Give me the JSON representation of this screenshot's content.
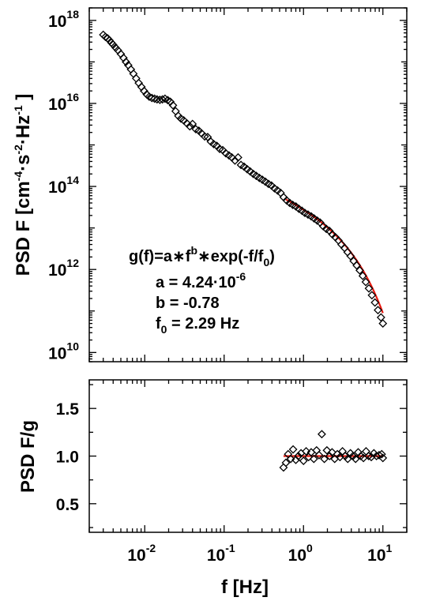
{
  "chart_data": [
    {
      "type": "scatter",
      "panel": "top",
      "ylabel_parts": {
        "main": "PSD F [cm",
        "exp1": "-4",
        "mid1": "·s",
        "exp2": "-2",
        "mid2": "·Hz",
        "exp3": "-1",
        "end": " ]"
      },
      "xscale": "log",
      "yscale": "log",
      "xlim": [
        0.002,
        20
      ],
      "ylim": [
        6000000000.0,
        2e+18
      ],
      "yticks": [
        {
          "value": 10000000000.0,
          "base": "10",
          "exp": "10"
        },
        {
          "value": 1000000000000.0,
          "base": "10",
          "exp": "12"
        },
        {
          "value": 100000000000000.0,
          "base": "10",
          "exp": "14"
        },
        {
          "value": 1e+16,
          "base": "10",
          "exp": "16"
        },
        {
          "value": 1e+18,
          "base": "10",
          "exp": "18"
        }
      ],
      "annotation": {
        "formula_parts": [
          "g(f)=a",
          "∗",
          "f",
          "b",
          "∗",
          "exp(-f/f",
          "0",
          ")"
        ],
        "a_parts": [
          "a = 4.24·10",
          "-6"
        ],
        "b_text": "b = -0.78",
        "f0_parts": [
          "f",
          "0",
          " = 2.29 Hz"
        ]
      },
      "series": [
        {
          "marker": "diamond-open",
          "color": "#000000",
          "points": [
            [
              0.003,
              4.5e+17
            ],
            [
              0.0032,
              4e+17
            ],
            [
              0.0034,
              3.7e+17
            ],
            [
              0.0036,
              3.3e+17
            ],
            [
              0.0038,
              2.9e+17
            ],
            [
              0.004,
              2.6e+17
            ],
            [
              0.0043,
              2.2e+17
            ],
            [
              0.0046,
              1.9e+17
            ],
            [
              0.005,
              1.55e+17
            ],
            [
              0.0054,
              1.25e+17
            ],
            [
              0.0058,
              1e+17
            ],
            [
              0.0062,
              8.3e+16
            ],
            [
              0.0067,
              6.6e+16
            ],
            [
              0.0072,
              5.2e+16
            ],
            [
              0.0078,
              4e+16
            ],
            [
              0.0084,
              3.1e+16
            ],
            [
              0.0091,
              2.5e+16
            ],
            [
              0.0098,
              2e+16
            ],
            [
              0.0106,
              1.65e+16
            ],
            [
              0.0114,
              1.45e+16
            ],
            [
              0.0123,
              1.35e+16
            ],
            [
              0.0133,
              1.3e+16
            ],
            [
              0.0143,
              1.25e+16
            ],
            [
              0.0155,
              1.22e+16
            ],
            [
              0.0167,
              1.25e+16
            ],
            [
              0.018,
              1.3e+16
            ],
            [
              0.0195,
              1.2e+16
            ],
            [
              0.021,
              1.1e+16
            ],
            [
              0.0227,
              9000000000000000.0
            ],
            [
              0.0245,
              6500000000000000.0
            ],
            [
              0.0265,
              5000000000000000.0
            ],
            [
              0.0286,
              4300000000000000.0
            ],
            [
              0.031,
              3900000000000000.0
            ],
            [
              0.034,
              3300000000000000.0
            ],
            [
              0.037,
              2800000000000000.0
            ],
            [
              0.04,
              3200000000000000.0
            ],
            [
              0.044,
              2400000000000000.0
            ],
            [
              0.048,
              2200000000000000.0
            ],
            [
              0.052,
              1900000000000000.0
            ],
            [
              0.057,
              1600000000000000.0
            ],
            [
              0.062,
              1550000000000000.0
            ],
            [
              0.068,
              1200000000000000.0
            ],
            [
              0.074,
              1050000000000000.0
            ],
            [
              0.081,
              950000000000000.0
            ],
            [
              0.088,
              800000000000000.0
            ],
            [
              0.096,
              750000000000000.0
            ],
            [
              0.105,
              630000000000000.0
            ],
            [
              0.115,
              560000000000000.0
            ],
            [
              0.125,
              500000000000000.0
            ],
            [
              0.137,
              420000000000000.0
            ],
            [
              0.15,
              500000000000000.0
            ],
            [
              0.163,
              330000000000000.0
            ],
            [
              0.178,
              300000000000000.0
            ],
            [
              0.195,
              260000000000000.0
            ],
            [
              0.213,
              230000000000000.0
            ],
            [
              0.233,
              200000000000000.0
            ],
            [
              0.254,
              180000000000000.0
            ],
            [
              0.278,
              160000000000000.0
            ],
            [
              0.303,
              145000000000000.0
            ],
            [
              0.331,
              130000000000000.0
            ],
            [
              0.362,
              115000000000000.0
            ],
            [
              0.395,
              105000000000000.0
            ],
            [
              0.431,
              90000000000000.0
            ],
            [
              0.471,
              80000000000000.0
            ],
            [
              0.515,
              70000000000000.0
            ],
            [
              0.562,
              55000000000000.0
            ],
            [
              0.614,
              46000000000000.0
            ],
            [
              0.671,
              40000000000000.0
            ],
            [
              0.733,
              36000000000000.0
            ],
            [
              0.8,
              33000000000000.0
            ],
            [
              0.874,
              29000000000000.0
            ],
            [
              0.955,
              26000000000000.0
            ],
            [
              1.04,
              23000000000000.0
            ],
            [
              1.14,
              21000000000000.0
            ],
            [
              1.25,
              19000000000000.0
            ],
            [
              1.36,
              17000000000000.0
            ],
            [
              1.49,
              15000000000000.0
            ],
            [
              1.62,
              13500000000000.0
            ],
            [
              1.77,
              11000000000000.0
            ],
            [
              1.94,
              9500000000000.0
            ],
            [
              2.12,
              8500000000000.0
            ],
            [
              2.31,
              7000000000000.0
            ],
            [
              2.52,
              6000000000000.0
            ],
            [
              2.76,
              5000000000000.0
            ],
            [
              3.01,
              4000000000000.0
            ],
            [
              3.29,
              3300000000000.0
            ],
            [
              3.59,
              2600000000000.0
            ],
            [
              3.92,
              2100000000000.0
            ],
            [
              4.28,
              1600000000000.0
            ],
            [
              4.68,
              1250000000000.0
            ],
            [
              5.11,
              950000000000.0
            ],
            [
              5.58,
              700000000000.0
            ],
            [
              6.09,
              500000000000.0
            ],
            [
              6.66,
              350000000000.0
            ],
            [
              7.27,
              240000000000.0
            ],
            [
              7.94,
              160000000000.0
            ],
            [
              8.67,
              105000000000.0
            ],
            [
              9.47,
              70000000000.0
            ],
            [
              10.0,
              50000000000.0
            ]
          ]
        },
        {
          "type": "line",
          "color": "#e8190f",
          "fit": {
            "a": 4.24e-06,
            "b": -0.78,
            "f0": 2.29
          },
          "x_range": [
            0.6,
            10.0
          ]
        }
      ]
    },
    {
      "type": "scatter",
      "panel": "bottom",
      "ylabel": "PSD F/g",
      "xlabel": "f [Hz]",
      "xscale": "log",
      "yscale": "linear",
      "xlim": [
        0.002,
        20
      ],
      "ylim": [
        0.2,
        1.8
      ],
      "yticks": [
        {
          "value": 0.5,
          "label": "0.5"
        },
        {
          "value": 1.0,
          "label": "1.0"
        },
        {
          "value": 1.5,
          "label": "1.5"
        }
      ],
      "xticks": [
        {
          "value": 0.01,
          "base": "10",
          "exp": "-2"
        },
        {
          "value": 0.1,
          "base": "10",
          "exp": "-1"
        },
        {
          "value": 1,
          "base": "10",
          "exp": "0"
        },
        {
          "value": 10,
          "base": "10",
          "exp": "1"
        }
      ],
      "series": [
        {
          "marker": "diamond-open",
          "color": "#000000",
          "points": [
            [
              0.56,
              0.88
            ],
            [
              0.6,
              0.93
            ],
            [
              0.64,
              1.02
            ],
            [
              0.69,
              0.97
            ],
            [
              0.74,
              1.07
            ],
            [
              0.8,
              0.96
            ],
            [
              0.86,
              1.0
            ],
            [
              0.93,
              1.03
            ],
            [
              1.0,
              0.95
            ],
            [
              1.08,
              1.05
            ],
            [
              1.16,
              0.99
            ],
            [
              1.25,
              1.04
            ],
            [
              1.35,
              0.97
            ],
            [
              1.46,
              1.06
            ],
            [
              1.57,
              1.01
            ],
            [
              1.7,
              1.23
            ],
            [
              1.83,
              0.97
            ],
            [
              1.97,
              1.06
            ],
            [
              2.13,
              1.0
            ],
            [
              2.29,
              1.04
            ],
            [
              2.47,
              0.97
            ],
            [
              2.67,
              1.02
            ],
            [
              2.88,
              0.99
            ],
            [
              3.1,
              1.05
            ],
            [
              3.35,
              1.0
            ],
            [
              3.61,
              0.97
            ],
            [
              3.9,
              1.03
            ],
            [
              4.2,
              1.0
            ],
            [
              4.53,
              0.97
            ],
            [
              4.89,
              1.04
            ],
            [
              5.27,
              1.0
            ],
            [
              5.69,
              0.98
            ],
            [
              6.14,
              1.05
            ],
            [
              6.62,
              1.0
            ],
            [
              7.14,
              0.99
            ],
            [
              7.7,
              1.03
            ],
            [
              8.31,
              1.0
            ],
            [
              8.96,
              1.01
            ],
            [
              9.67,
              1.02
            ],
            [
              10.0,
              0.98
            ]
          ]
        },
        {
          "type": "line",
          "color": "#e8190f",
          "points": [
            [
              0.56,
              1.0
            ],
            [
              10.0,
              1.0
            ]
          ]
        }
      ]
    }
  ]
}
